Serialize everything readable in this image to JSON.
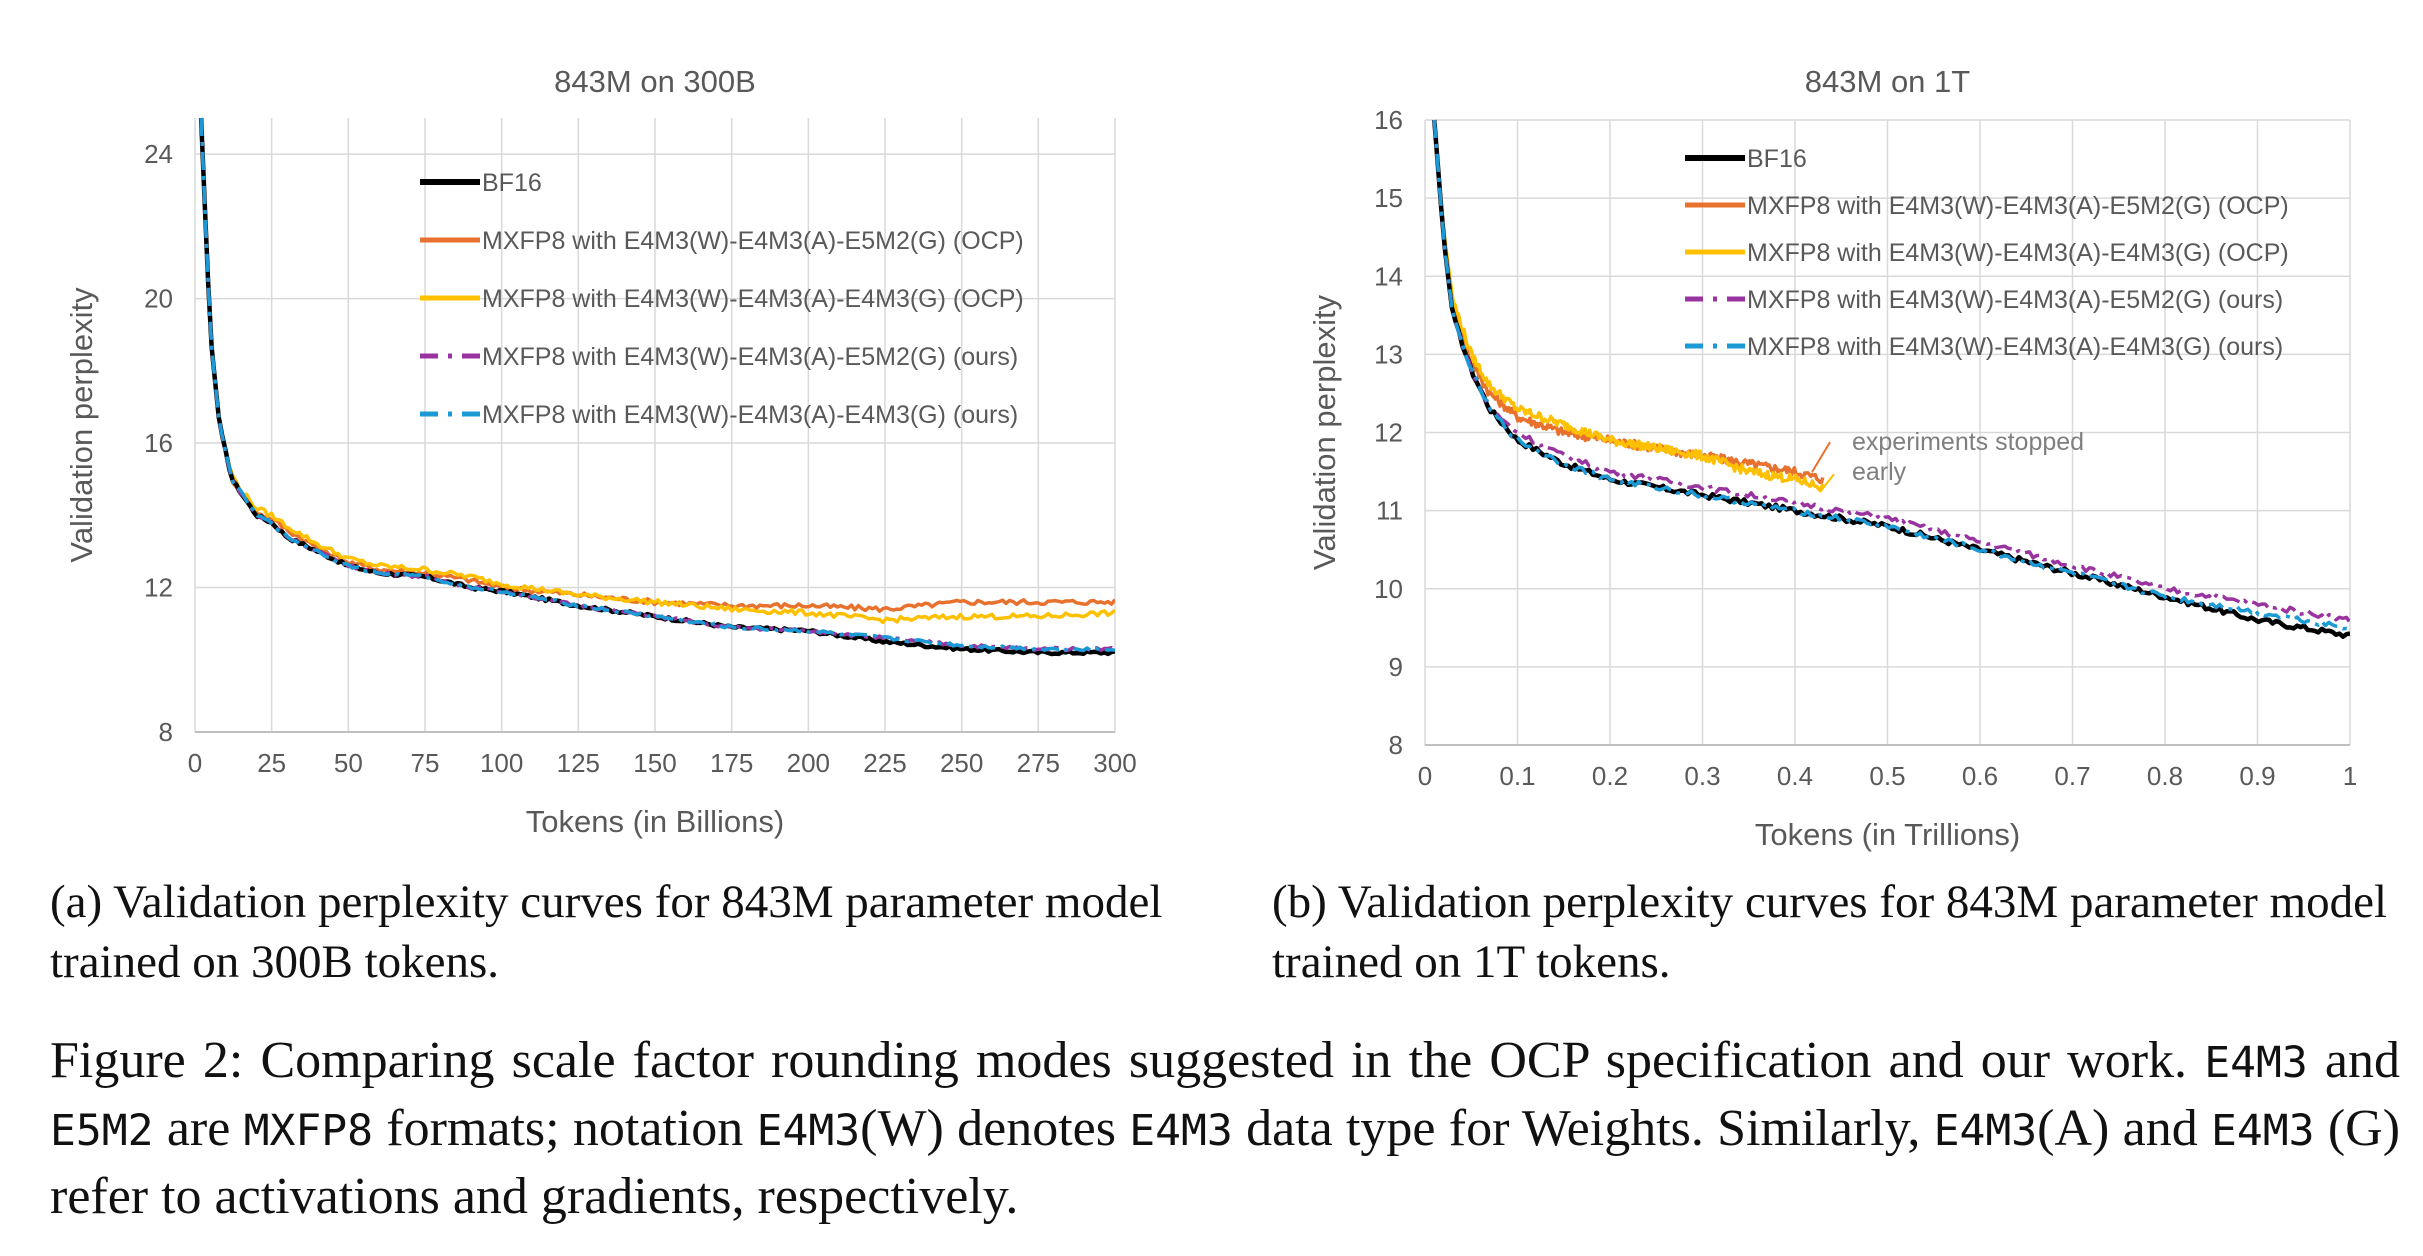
{
  "chart_data": [
    {
      "type": "line",
      "title": "843M on 300B",
      "xlabel": "Tokens (in Billions)",
      "ylabel": "Validation perplexity",
      "xlim": [
        0,
        300
      ],
      "ylim": [
        8,
        25
      ],
      "xticks": [
        "0",
        "25",
        "50",
        "75",
        "100",
        "125",
        "150",
        "175",
        "200",
        "225",
        "250",
        "275",
        "300"
      ],
      "xtick_values": [
        0,
        25,
        50,
        75,
        100,
        125,
        150,
        175,
        200,
        225,
        250,
        275,
        300
      ],
      "yticks": [
        "8",
        "12",
        "16",
        "20",
        "24"
      ],
      "ytick_values": [
        8,
        12,
        16,
        20,
        24
      ],
      "grid": true,
      "legend_position": "top-center",
      "series": [
        {
          "name": "BF16",
          "color": "#000000",
          "style": "solid",
          "x": [
            2,
            5,
            8,
            12,
            16,
            20,
            25,
            30,
            40,
            50,
            60,
            75,
            90,
            100,
            125,
            150,
            175,
            200,
            225,
            250,
            275,
            300
          ],
          "y": [
            25,
            19,
            16.5,
            15,
            14.5,
            14,
            13.8,
            13.4,
            13,
            12.6,
            12.4,
            12.3,
            12,
            11.9,
            11.5,
            11.2,
            10.9,
            10.8,
            10.5,
            10.3,
            10.2,
            10.2
          ]
        },
        {
          "name": "MXFP8 with E4M3(W)-E4M3(A)-E5M2(G) (OCP)",
          "color": "#E8712E",
          "style": "solid",
          "x": [
            2,
            5,
            8,
            12,
            16,
            20,
            25,
            30,
            40,
            50,
            60,
            75,
            90,
            100,
            125,
            150,
            175,
            200,
            225,
            250,
            275,
            300
          ],
          "y": [
            25,
            19,
            16.5,
            15,
            14.5,
            14.1,
            13.9,
            13.6,
            13.1,
            12.7,
            12.5,
            12.4,
            12.2,
            12,
            11.8,
            11.6,
            11.5,
            11.5,
            11.4,
            11.6,
            11.6,
            11.6
          ]
        },
        {
          "name": "MXFP8 with E4M3(W)-E4M3(A)-E4M3(G) (OCP)",
          "color": "#FFC000",
          "style": "solid",
          "x": [
            2,
            5,
            8,
            12,
            16,
            20,
            25,
            30,
            40,
            50,
            60,
            75,
            90,
            100,
            125,
            150,
            175,
            200,
            225,
            250,
            275,
            300
          ],
          "y": [
            25,
            19,
            16.5,
            15.1,
            14.6,
            14.2,
            14,
            13.7,
            13.2,
            12.8,
            12.6,
            12.5,
            12.3,
            12.1,
            11.8,
            11.6,
            11.4,
            11.3,
            11.1,
            11.2,
            11.2,
            11.3
          ]
        },
        {
          "name": "MXFP8 with E4M3(W)-E4M3(A)-E5M2(G) (ours)",
          "color": "#9933A0",
          "style": "dashdot",
          "x": [
            2,
            5,
            8,
            12,
            16,
            20,
            25,
            30,
            40,
            50,
            60,
            75,
            90,
            100,
            125,
            150,
            175,
            200,
            225,
            250,
            275,
            300
          ],
          "y": [
            25,
            19,
            16.5,
            15,
            14.5,
            14,
            13.8,
            13.4,
            13,
            12.6,
            12.4,
            12.3,
            12,
            11.9,
            11.5,
            11.2,
            10.9,
            10.8,
            10.6,
            10.4,
            10.3,
            10.3
          ]
        },
        {
          "name": "MXFP8 with E4M3(W)-E4M3(A)-E4M3(G) (ours)",
          "color": "#1B9AD6",
          "style": "dashdot",
          "x": [
            2,
            5,
            8,
            12,
            16,
            20,
            25,
            30,
            40,
            50,
            60,
            75,
            90,
            100,
            125,
            150,
            175,
            200,
            225,
            250,
            275,
            300
          ],
          "y": [
            25,
            19,
            16.5,
            15,
            14.5,
            14,
            13.8,
            13.4,
            13,
            12.6,
            12.4,
            12.3,
            12,
            11.9,
            11.5,
            11.2,
            10.9,
            10.8,
            10.6,
            10.4,
            10.3,
            10.3
          ]
        }
      ]
    },
    {
      "type": "line",
      "title": "843M on 1T",
      "xlabel": "Tokens (in Trillions)",
      "ylabel": "Validation perplexity",
      "xlim": [
        0,
        1
      ],
      "ylim": [
        8,
        16
      ],
      "xticks": [
        "0",
        "0.1",
        "0.2",
        "0.3",
        "0.4",
        "0.5",
        "0.6",
        "0.7",
        "0.8",
        "0.9",
        "1"
      ],
      "xtick_values": [
        0,
        0.1,
        0.2,
        0.3,
        0.4,
        0.5,
        0.6,
        0.7,
        0.8,
        0.9,
        1
      ],
      "yticks": [
        "8",
        "9",
        "10",
        "11",
        "12",
        "13",
        "14",
        "15",
        "16"
      ],
      "ytick_values": [
        8,
        9,
        10,
        11,
        12,
        13,
        14,
        15,
        16
      ],
      "grid": true,
      "legend_position": "top-center",
      "annotation": {
        "text_lines": [
          "experiments stopped",
          "early"
        ],
        "x": 0.44,
        "y": 11.8
      },
      "series": [
        {
          "name": "BF16",
          "color": "#000000",
          "style": "solid",
          "x": [
            0.01,
            0.02,
            0.03,
            0.05,
            0.07,
            0.1,
            0.15,
            0.2,
            0.3,
            0.4,
            0.5,
            0.6,
            0.7,
            0.8,
            0.9,
            1.0
          ],
          "y": [
            16,
            14.5,
            13.5,
            12.8,
            12.3,
            11.9,
            11.6,
            11.4,
            11.2,
            11,
            10.8,
            10.5,
            10.2,
            9.9,
            9.6,
            9.4
          ]
        },
        {
          "name": "MXFP8 with E4M3(W)-E4M3(A)-E5M2(G) (OCP)",
          "color": "#E8712E",
          "style": "solid",
          "x": [
            0.01,
            0.02,
            0.03,
            0.05,
            0.07,
            0.1,
            0.15,
            0.2,
            0.25,
            0.3,
            0.35,
            0.4,
            0.43
          ],
          "y": [
            16,
            14.5,
            13.6,
            12.9,
            12.5,
            12.2,
            12,
            11.9,
            11.8,
            11.7,
            11.6,
            11.5,
            11.4
          ]
        },
        {
          "name": "MXFP8 with E4M3(W)-E4M3(A)-E4M3(G) (OCP)",
          "color": "#FFC000",
          "style": "solid",
          "x": [
            0.01,
            0.02,
            0.03,
            0.05,
            0.07,
            0.1,
            0.15,
            0.2,
            0.25,
            0.3,
            0.35,
            0.4,
            0.43
          ],
          "y": [
            16,
            14.6,
            13.7,
            13,
            12.6,
            12.3,
            12.1,
            11.9,
            11.8,
            11.7,
            11.5,
            11.4,
            11.3
          ]
        },
        {
          "name": "MXFP8 with E4M3(W)-E4M3(A)-E5M2(G) (ours)",
          "color": "#9933A0",
          "style": "dashdot",
          "x": [
            0.01,
            0.02,
            0.03,
            0.05,
            0.07,
            0.1,
            0.15,
            0.2,
            0.3,
            0.4,
            0.5,
            0.6,
            0.7,
            0.8,
            0.9,
            1.0
          ],
          "y": [
            16,
            14.5,
            13.5,
            12.8,
            12.3,
            12,
            11.7,
            11.5,
            11.3,
            11.1,
            10.9,
            10.6,
            10.3,
            10,
            9.8,
            9.6
          ]
        },
        {
          "name": "MXFP8 with E4M3(W)-E4M3(A)-E4M3(G) (ours)",
          "color": "#1B9AD6",
          "style": "dashdot",
          "x": [
            0.01,
            0.02,
            0.03,
            0.05,
            0.07,
            0.1,
            0.15,
            0.2,
            0.3,
            0.4,
            0.5,
            0.6,
            0.7,
            0.8,
            0.9,
            1.0
          ],
          "y": [
            16,
            14.5,
            13.5,
            12.8,
            12.3,
            11.9,
            11.6,
            11.4,
            11.2,
            11,
            10.8,
            10.5,
            10.2,
            9.9,
            9.7,
            9.5
          ]
        }
      ]
    }
  ],
  "captions": {
    "a": "(a) Validation perplexity curves for 843M parameter model trained on 300B tokens.",
    "b": "(b) Validation perplexity curves for 843M parameter model trained on 1T tokens."
  },
  "figure_caption": {
    "p1": "Figure 2: Comparing scale factor rounding modes suggested in the OCP specification and our work.",
    "c1": "E4M3",
    "p2": " and ",
    "c2": "E5M2",
    "p3": " are ",
    "c3": "MXFP8",
    "p4": " formats; notation ",
    "c4": "E4M3",
    "p5": "(W) denotes ",
    "c5": "E4M3",
    "p6": " data type for Weights. Similarly, ",
    "c6": "E4M3",
    "p7": "(A) and ",
    "c7": "E4M3",
    "p8": " (G) refer to activations and gradients, respectively."
  }
}
